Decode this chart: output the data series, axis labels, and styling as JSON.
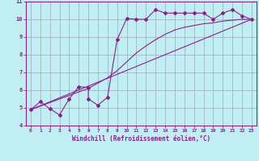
{
  "title": "",
  "xlabel": "Windchill (Refroidissement éolien,°C)",
  "ylabel": "",
  "bg_color": "#c0eef2",
  "line_color": "#882288",
  "grid_color": "#99aabb",
  "xlim": [
    -0.5,
    23.5
  ],
  "ylim": [
    4,
    11
  ],
  "xticks": [
    0,
    1,
    2,
    3,
    4,
    5,
    6,
    7,
    8,
    9,
    10,
    11,
    12,
    13,
    14,
    15,
    16,
    17,
    18,
    19,
    20,
    21,
    22,
    23
  ],
  "yticks": [
    4,
    5,
    6,
    7,
    8,
    9,
    10,
    11
  ],
  "line1_x": [
    0,
    1,
    2,
    3,
    4,
    5,
    6,
    6,
    7,
    8,
    9,
    10,
    11,
    12,
    13,
    14,
    15,
    16,
    17,
    18,
    19,
    20,
    21,
    22,
    23
  ],
  "line1_y": [
    4.9,
    5.35,
    4.95,
    4.6,
    5.5,
    6.2,
    6.15,
    5.5,
    5.15,
    5.6,
    8.85,
    10.05,
    10.0,
    10.0,
    10.55,
    10.35,
    10.35,
    10.35,
    10.35,
    10.35,
    10.0,
    10.35,
    10.55,
    10.2,
    10.0
  ],
  "line2_x": [
    0,
    23
  ],
  "line2_y": [
    4.9,
    10.0
  ],
  "line3_x": [
    0,
    1,
    2,
    3,
    4,
    5,
    6,
    7,
    8,
    9,
    10,
    11,
    12,
    13,
    14,
    15,
    16,
    17,
    18,
    19,
    20,
    21,
    22,
    23
  ],
  "line3_y": [
    4.9,
    5.1,
    5.3,
    5.5,
    5.7,
    5.9,
    6.1,
    6.4,
    6.7,
    7.1,
    7.6,
    8.1,
    8.5,
    8.85,
    9.15,
    9.4,
    9.55,
    9.65,
    9.75,
    9.8,
    9.9,
    9.95,
    10.0,
    10.0
  ],
  "marker": "D",
  "marker_size": 2.0,
  "line_width": 0.8
}
